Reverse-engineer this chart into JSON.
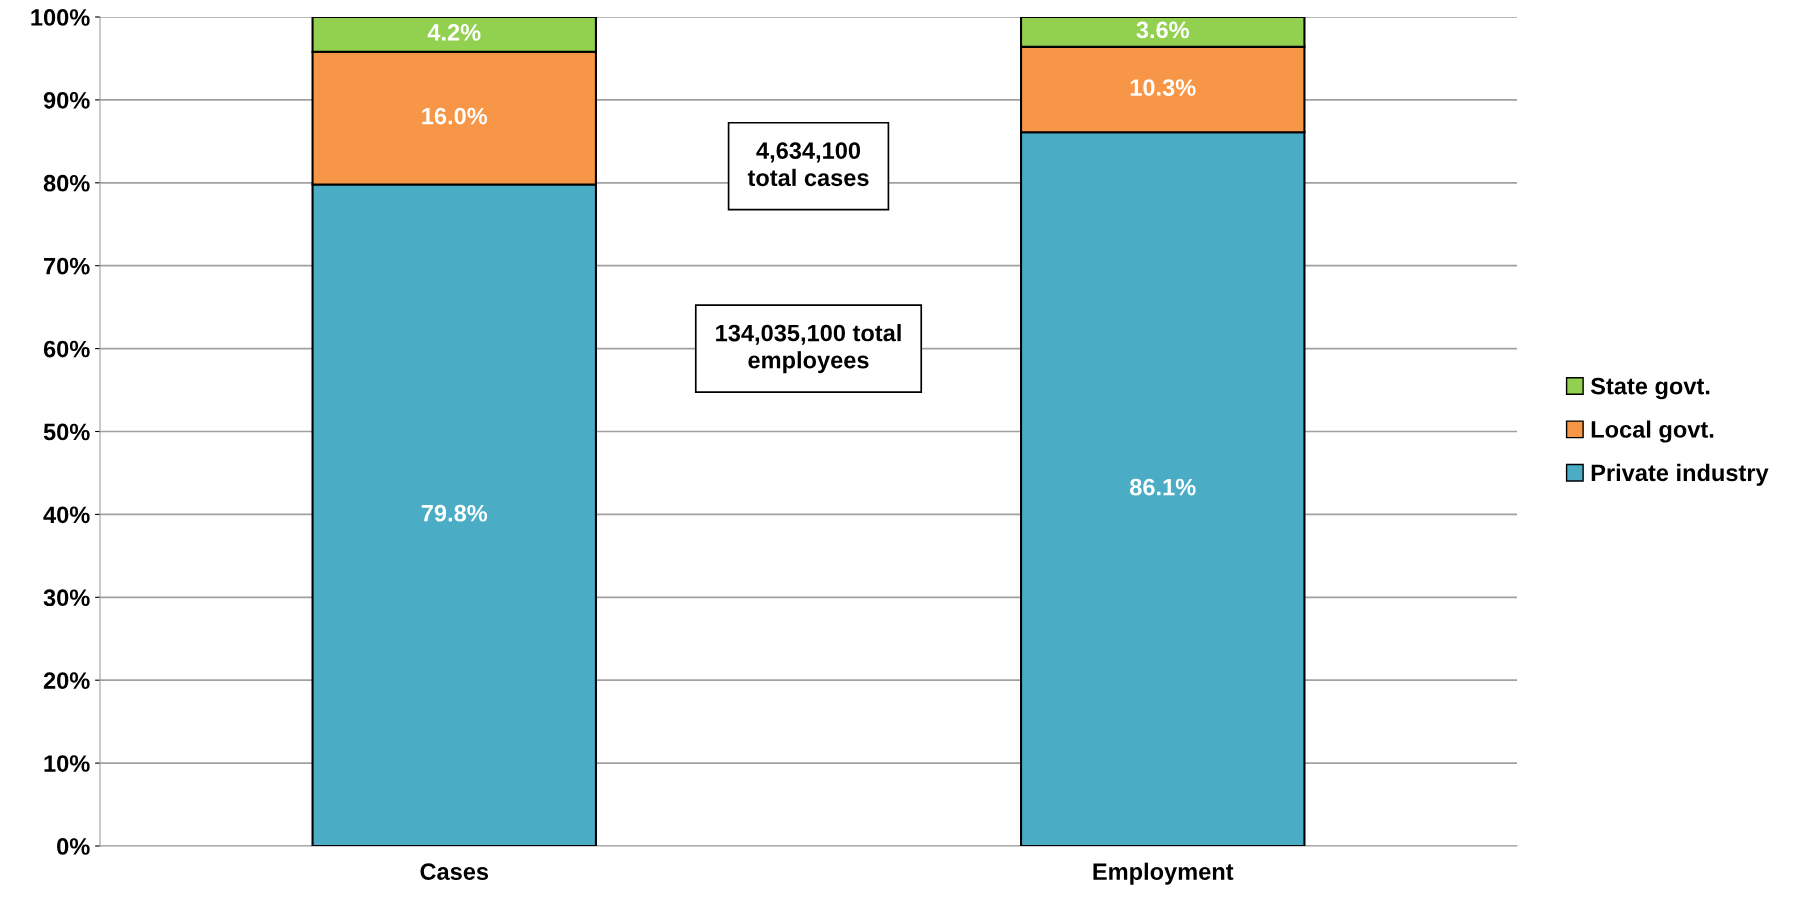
{
  "chart_data": {
    "type": "bar",
    "stacked": true,
    "categories": [
      "Cases",
      "Employment"
    ],
    "series": [
      {
        "name": "Private industry",
        "color": "#4bacc6",
        "values": [
          79.8,
          86.1
        ],
        "value_labels": [
          "79.8%",
          "86.1%"
        ]
      },
      {
        "name": "Local govt.",
        "color": "#f79646",
        "values": [
          16.0,
          10.3
        ],
        "value_labels": [
          "16.0%",
          "10.3%"
        ]
      },
      {
        "name": "State govt.",
        "color": "#92d050",
        "values": [
          4.2,
          3.6
        ],
        "value_labels": [
          "4.2%",
          "3.6%"
        ]
      }
    ],
    "ylim": [
      0,
      100
    ],
    "yticks": [
      {
        "value": 0,
        "label": "0%"
      },
      {
        "value": 10,
        "label": "10%"
      },
      {
        "value": 20,
        "label": "20%"
      },
      {
        "value": 30,
        "label": "30%"
      },
      {
        "value": 40,
        "label": "40%"
      },
      {
        "value": 50,
        "label": "50%"
      },
      {
        "value": 60,
        "label": "60%"
      },
      {
        "value": 70,
        "label": "70%"
      },
      {
        "value": 80,
        "label": "80%"
      },
      {
        "value": 90,
        "label": "90%"
      },
      {
        "value": 100,
        "label": "100%"
      }
    ],
    "annotations": [
      "4,634,100\ntotal cases",
      "134,035,100 total\nemployees"
    ],
    "grid": "y",
    "legend": "right"
  }
}
